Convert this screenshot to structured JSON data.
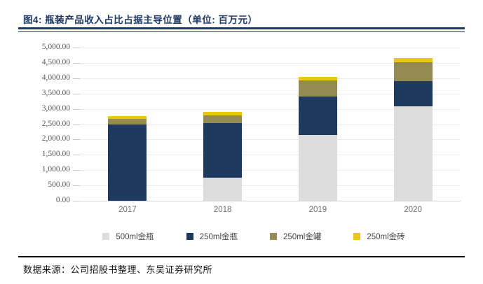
{
  "figure": {
    "title": "图4: 瓶装产品收入占比占据主导位置（单位: 百万元）",
    "source": "数据来源：公司招股书整理、东吴证券研究所"
  },
  "colors": {
    "title_navy": "#1f3864",
    "rule_black": "#000000",
    "gridline": "#ececec",
    "axis_line": "#d6d6d6",
    "y_axis_text": "#595959",
    "x_axis_text": "#6e6e6e",
    "legend_text": "#454545"
  },
  "chart_data": {
    "type": "bar",
    "stacked": true,
    "title": "瓶装产品收入占比占据主导位置",
    "unit": "百万元",
    "categories": [
      "2017",
      "2018",
      "2019",
      "2020"
    ],
    "series": [
      {
        "name": "500ml金瓶",
        "color": "#dddddd",
        "values": [
          0,
          760,
          2140,
          3090
        ]
      },
      {
        "name": "250ml金瓶",
        "color": "#1e3a5f",
        "values": [
          2480,
          1770,
          1260,
          820
        ]
      },
      {
        "name": "250ml金罐",
        "color": "#948a54",
        "values": [
          190,
          250,
          520,
          620
        ]
      },
      {
        "name": "250ml金砖",
        "color": "#eac711",
        "values": [
          90,
          130,
          120,
          120
        ]
      }
    ],
    "totals": [
      2760,
      2910,
      4040,
      4650
    ],
    "ylim": [
      0,
      5000
    ],
    "ytick_step": 500,
    "ytick_labels_top_to_bottom": [
      "5,000.00",
      "4,500.00",
      "4,000.00",
      "3,500.00",
      "3,000.00",
      "2,500.00",
      "2,000.00",
      "1,500.00",
      "1,000.00",
      "500.00",
      "0.00"
    ],
    "grid": true,
    "legend_position": "bottom"
  }
}
